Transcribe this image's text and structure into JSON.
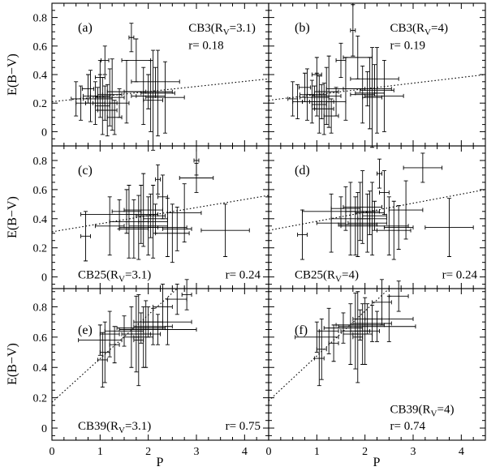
{
  "figure": {
    "x_axis_label": "P",
    "y_axis_label": "E(B−V)",
    "x_ticks": [
      0,
      1,
      2,
      3,
      4
    ],
    "xlim": [
      0,
      4.5
    ]
  },
  "chart_data": [
    {
      "id": "a",
      "type": "scatter",
      "label": "(a)",
      "title_main": "CB3(R",
      "title_sub": "V",
      "title_tail": "=3.1)",
      "r_text": "r= 0.18",
      "xlabel": "P",
      "ylabel": "E(B−V)",
      "xlim": [
        0,
        4.5
      ],
      "ylim": [
        -0.1,
        0.9
      ],
      "y_ticks": [
        0,
        0.2,
        0.4,
        0.6,
        0.8
      ],
      "fit": {
        "x0": 0,
        "y0": 0.21,
        "x1": 4.5,
        "y1": 0.37
      },
      "points": [
        {
          "x": 0.5,
          "y": 0.23,
          "xerr": 0.1,
          "yerr": 0.12
        },
        {
          "x": 0.6,
          "y": 0.2,
          "xerr": 0.1,
          "yerr": 0.12
        },
        {
          "x": 0.75,
          "y": 0.3,
          "xerr": 0.12,
          "yerr": 0.1
        },
        {
          "x": 0.8,
          "y": 0.25,
          "xerr": 0.15,
          "yerr": 0.18
        },
        {
          "x": 0.9,
          "y": 0.2,
          "xerr": 0.2,
          "yerr": 0.15
        },
        {
          "x": 0.95,
          "y": 0.23,
          "xerr": 0.3,
          "yerr": 0.08
        },
        {
          "x": 1.0,
          "y": 0.25,
          "xerr": 0.2,
          "yerr": 0.15
        },
        {
          "x": 1.0,
          "y": 0.38,
          "xerr": 0.1,
          "yerr": 0.12
        },
        {
          "x": 1.05,
          "y": 0.18,
          "xerr": 0.15,
          "yerr": 0.2
        },
        {
          "x": 1.1,
          "y": 0.2,
          "xerr": 0.25,
          "yerr": 0.12
        },
        {
          "x": 1.1,
          "y": 0.5,
          "xerr": 0.08,
          "yerr": 0.1
        },
        {
          "x": 1.15,
          "y": 0.15,
          "xerr": 0.2,
          "yerr": 0.18
        },
        {
          "x": 1.2,
          "y": 0.24,
          "xerr": 0.3,
          "yerr": 0.2
        },
        {
          "x": 1.25,
          "y": 0.26,
          "xerr": 0.2,
          "yerr": 0.25
        },
        {
          "x": 1.3,
          "y": 0.1,
          "xerr": 0.15,
          "yerr": 0.12
        },
        {
          "x": 1.4,
          "y": 0.2,
          "xerr": 0.2,
          "yerr": 0.1
        },
        {
          "x": 1.55,
          "y": 0.28,
          "xerr": 0.4,
          "yerr": 0.22
        },
        {
          "x": 1.65,
          "y": 0.66,
          "xerr": 0.05,
          "yerr": 0.1
        },
        {
          "x": 1.75,
          "y": 0.5,
          "xerr": 0.3,
          "yerr": 0.15
        },
        {
          "x": 1.9,
          "y": 0.25,
          "xerr": 0.25,
          "yerr": 0.2
        },
        {
          "x": 2.0,
          "y": 0.28,
          "xerr": 0.5,
          "yerr": 0.12
        },
        {
          "x": 2.05,
          "y": 0.25,
          "xerr": 0.3,
          "yerr": 0.25
        },
        {
          "x": 2.1,
          "y": 0.22,
          "xerr": 0.2,
          "yerr": 0.35
        },
        {
          "x": 2.15,
          "y": 0.35,
          "xerr": 0.5,
          "yerr": 0.1
        },
        {
          "x": 2.2,
          "y": 0.27,
          "xerr": 0.35,
          "yerr": 0.3
        },
        {
          "x": 2.35,
          "y": 0.24,
          "xerr": 0.4,
          "yerr": 0.25
        }
      ]
    },
    {
      "id": "b",
      "type": "scatter",
      "label": "(b)",
      "title_main": "CB3(R",
      "title_sub": "V",
      "title_tail": "=4)",
      "r_text": "r= 0.19",
      "xlabel": "P",
      "ylabel": "E(B−V)",
      "xlim": [
        0,
        4.5
      ],
      "ylim": [
        -0.1,
        0.9
      ],
      "y_ticks": [
        0,
        0.2,
        0.4,
        0.6,
        0.8
      ],
      "fit": {
        "x0": 0,
        "y0": 0.22,
        "x1": 4.5,
        "y1": 0.4
      },
      "points": [
        {
          "x": 0.5,
          "y": 0.23,
          "xerr": 0.1,
          "yerr": 0.12
        },
        {
          "x": 0.6,
          "y": 0.21,
          "xerr": 0.1,
          "yerr": 0.12
        },
        {
          "x": 0.75,
          "y": 0.31,
          "xerr": 0.12,
          "yerr": 0.1
        },
        {
          "x": 0.8,
          "y": 0.26,
          "xerr": 0.15,
          "yerr": 0.18
        },
        {
          "x": 0.9,
          "y": 0.21,
          "xerr": 0.2,
          "yerr": 0.15
        },
        {
          "x": 0.95,
          "y": 0.24,
          "xerr": 0.3,
          "yerr": 0.08
        },
        {
          "x": 1.0,
          "y": 0.26,
          "xerr": 0.2,
          "yerr": 0.15
        },
        {
          "x": 1.0,
          "y": 0.4,
          "xerr": 0.1,
          "yerr": 0.12
        },
        {
          "x": 1.05,
          "y": 0.19,
          "xerr": 0.15,
          "yerr": 0.2
        },
        {
          "x": 1.1,
          "y": 0.21,
          "xerr": 0.25,
          "yerr": 0.12
        },
        {
          "x": 1.15,
          "y": 0.16,
          "xerr": 0.2,
          "yerr": 0.18
        },
        {
          "x": 1.2,
          "y": 0.25,
          "xerr": 0.3,
          "yerr": 0.2
        },
        {
          "x": 1.25,
          "y": 0.28,
          "xerr": 0.2,
          "yerr": 0.25
        },
        {
          "x": 1.3,
          "y": 0.11,
          "xerr": 0.15,
          "yerr": 0.12
        },
        {
          "x": 1.4,
          "y": 0.21,
          "xerr": 0.2,
          "yerr": 0.1
        },
        {
          "x": 1.5,
          "y": 0.5,
          "xerr": 0.1,
          "yerr": 0.12
        },
        {
          "x": 1.6,
          "y": 0.3,
          "xerr": 0.4,
          "yerr": 0.22
        },
        {
          "x": 1.75,
          "y": 0.71,
          "xerr": 0.05,
          "yerr": 0.18
        },
        {
          "x": 1.85,
          "y": 0.52,
          "xerr": 0.3,
          "yerr": 0.15
        },
        {
          "x": 1.95,
          "y": 0.26,
          "xerr": 0.25,
          "yerr": 0.2
        },
        {
          "x": 2.05,
          "y": 0.3,
          "xerr": 0.5,
          "yerr": 0.12
        },
        {
          "x": 2.1,
          "y": 0.27,
          "xerr": 0.3,
          "yerr": 0.25
        },
        {
          "x": 2.15,
          "y": 0.24,
          "xerr": 0.2,
          "yerr": 0.35
        },
        {
          "x": 2.2,
          "y": 0.37,
          "xerr": 0.5,
          "yerr": 0.1
        },
        {
          "x": 2.25,
          "y": 0.29,
          "xerr": 0.35,
          "yerr": 0.3
        },
        {
          "x": 2.4,
          "y": 0.25,
          "xerr": 0.4,
          "yerr": 0.25
        }
      ]
    },
    {
      "id": "c",
      "type": "scatter",
      "label": "(c)",
      "title_main": "CB25(R",
      "title_sub": "V",
      "title_tail": "=3.1)",
      "r_text": "r= 0.24",
      "xlabel": "P",
      "ylabel": "E(B−V)",
      "xlim": [
        0,
        4.5
      ],
      "ylim": [
        -0.08,
        0.9
      ],
      "y_ticks": [
        0,
        0.2,
        0.4,
        0.6,
        0.8
      ],
      "fit": {
        "x0": 0,
        "y0": 0.31,
        "x1": 4.5,
        "y1": 0.56
      },
      "points": [
        {
          "x": 0.7,
          "y": 0.28,
          "xerr": 0.1,
          "yerr": 0.17
        },
        {
          "x": 1.2,
          "y": 0.35,
          "xerr": 0.3,
          "yerr": 0.2
        },
        {
          "x": 1.4,
          "y": 0.43,
          "xerr": 0.8,
          "yerr": 0.1
        },
        {
          "x": 1.55,
          "y": 0.45,
          "xerr": 0.3,
          "yerr": 0.15
        },
        {
          "x": 1.6,
          "y": 0.38,
          "xerr": 0.4,
          "yerr": 0.25
        },
        {
          "x": 1.7,
          "y": 0.33,
          "xerr": 0.3,
          "yerr": 0.2
        },
        {
          "x": 1.8,
          "y": 0.34,
          "xerr": 0.4,
          "yerr": 0.22
        },
        {
          "x": 1.85,
          "y": 0.43,
          "xerr": 0.3,
          "yerr": 0.2
        },
        {
          "x": 1.9,
          "y": 0.46,
          "xerr": 0.4,
          "yerr": 0.25
        },
        {
          "x": 2.0,
          "y": 0.35,
          "xerr": 0.4,
          "yerr": 0.2
        },
        {
          "x": 2.05,
          "y": 0.42,
          "xerr": 0.3,
          "yerr": 0.15
        },
        {
          "x": 2.1,
          "y": 0.38,
          "xerr": 0.3,
          "yerr": 0.25
        },
        {
          "x": 2.15,
          "y": 0.4,
          "xerr": 0.25,
          "yerr": 0.1
        },
        {
          "x": 2.2,
          "y": 0.67,
          "xerr": 0.05,
          "yerr": 0.1
        },
        {
          "x": 2.3,
          "y": 0.55,
          "xerr": 0.1,
          "yerr": 0.15
        },
        {
          "x": 2.4,
          "y": 0.34,
          "xerr": 0.4,
          "yerr": 0.2
        },
        {
          "x": 2.5,
          "y": 0.3,
          "xerr": 0.35,
          "yerr": 0.2
        },
        {
          "x": 2.6,
          "y": 0.33,
          "xerr": 0.3,
          "yerr": 0.15
        },
        {
          "x": 2.75,
          "y": 0.44,
          "xerr": 0.35,
          "yerr": 0.2
        },
        {
          "x": 3.0,
          "y": 0.68,
          "xerr": 0.35,
          "yerr": 0.1
        },
        {
          "x": 3.0,
          "y": 0.8,
          "xerr": 0.05,
          "yerr": 0.1
        },
        {
          "x": 3.6,
          "y": 0.32,
          "xerr": 0.5,
          "yerr": 0.18
        }
      ]
    },
    {
      "id": "d",
      "type": "scatter",
      "label": "(d)",
      "title_main": "CB25(R",
      "title_sub": "V",
      "title_tail": "=4)",
      "r_text": "r= 0.24",
      "xlabel": "P",
      "ylabel": "E(B−V)",
      "xlim": [
        0,
        4.5
      ],
      "ylim": [
        -0.08,
        0.9
      ],
      "y_ticks": [
        0,
        0.2,
        0.4,
        0.6,
        0.8
      ],
      "fit": {
        "x0": 0,
        "y0": 0.32,
        "x1": 4.5,
        "y1": 0.6
      },
      "points": [
        {
          "x": 0.7,
          "y": 0.29,
          "xerr": 0.1,
          "yerr": 0.17
        },
        {
          "x": 1.3,
          "y": 0.37,
          "xerr": 0.3,
          "yerr": 0.2
        },
        {
          "x": 1.5,
          "y": 0.45,
          "xerr": 0.8,
          "yerr": 0.1
        },
        {
          "x": 1.6,
          "y": 0.47,
          "xerr": 0.3,
          "yerr": 0.15
        },
        {
          "x": 1.7,
          "y": 0.4,
          "xerr": 0.4,
          "yerr": 0.25
        },
        {
          "x": 1.8,
          "y": 0.35,
          "xerr": 0.3,
          "yerr": 0.2
        },
        {
          "x": 1.85,
          "y": 0.36,
          "xerr": 0.4,
          "yerr": 0.22
        },
        {
          "x": 1.9,
          "y": 0.45,
          "xerr": 0.3,
          "yerr": 0.2
        },
        {
          "x": 1.95,
          "y": 0.48,
          "xerr": 0.4,
          "yerr": 0.25
        },
        {
          "x": 2.05,
          "y": 0.37,
          "xerr": 0.4,
          "yerr": 0.2
        },
        {
          "x": 2.1,
          "y": 0.44,
          "xerr": 0.3,
          "yerr": 0.15
        },
        {
          "x": 2.15,
          "y": 0.4,
          "xerr": 0.3,
          "yerr": 0.25
        },
        {
          "x": 2.2,
          "y": 0.42,
          "xerr": 0.25,
          "yerr": 0.1
        },
        {
          "x": 2.3,
          "y": 0.71,
          "xerr": 0.05,
          "yerr": 0.1
        },
        {
          "x": 2.4,
          "y": 0.58,
          "xerr": 0.1,
          "yerr": 0.15
        },
        {
          "x": 2.5,
          "y": 0.35,
          "xerr": 0.4,
          "yerr": 0.2
        },
        {
          "x": 2.6,
          "y": 0.32,
          "xerr": 0.35,
          "yerr": 0.2
        },
        {
          "x": 2.7,
          "y": 0.34,
          "xerr": 0.3,
          "yerr": 0.15
        },
        {
          "x": 2.85,
          "y": 0.46,
          "xerr": 0.35,
          "yerr": 0.2
        },
        {
          "x": 3.2,
          "y": 0.75,
          "xerr": 0.4,
          "yerr": 0.1
        },
        {
          "x": 3.75,
          "y": 0.34,
          "xerr": 0.5,
          "yerr": 0.2
        }
      ]
    },
    {
      "id": "e",
      "type": "scatter",
      "label": "(e)",
      "title_main": "CB39(R",
      "title_sub": "V",
      "title_tail": "=3.1)",
      "r_text": "r= 0.75",
      "xlabel": "P",
      "ylabel": "E(B−V)",
      "xlim": [
        0,
        4.5
      ],
      "ylim": [
        -0.08,
        0.92
      ],
      "y_ticks": [
        0,
        0.2,
        0.4,
        0.6,
        0.8
      ],
      "fit": {
        "x0": 0,
        "y0": 0.17,
        "x1": 2.6,
        "y1": 0.92
      },
      "points": [
        {
          "x": 1.0,
          "y": 0.58,
          "xerr": 0.45,
          "yerr": 0.1
        },
        {
          "x": 1.05,
          "y": 0.45,
          "xerr": 0.1,
          "yerr": 0.18
        },
        {
          "x": 1.1,
          "y": 0.5,
          "xerr": 0.1,
          "yerr": 0.2
        },
        {
          "x": 1.2,
          "y": 0.62,
          "xerr": 0.2,
          "yerr": 0.15
        },
        {
          "x": 1.3,
          "y": 0.55,
          "xerr": 0.1,
          "yerr": 0.12
        },
        {
          "x": 1.5,
          "y": 0.64,
          "xerr": 0.4,
          "yerr": 0.1
        },
        {
          "x": 1.65,
          "y": 0.6,
          "xerr": 0.15,
          "yerr": 0.2
        },
        {
          "x": 1.75,
          "y": 0.62,
          "xerr": 0.3,
          "yerr": 0.25
        },
        {
          "x": 1.8,
          "y": 0.58,
          "xerr": 0.1,
          "yerr": 0.3
        },
        {
          "x": 1.85,
          "y": 0.66,
          "xerr": 0.5,
          "yerr": 0.1
        },
        {
          "x": 1.9,
          "y": 0.6,
          "xerr": 0.2,
          "yerr": 0.2
        },
        {
          "x": 1.95,
          "y": 0.62,
          "xerr": 0.3,
          "yerr": 0.22
        },
        {
          "x": 2.0,
          "y": 0.7,
          "xerr": 0.3,
          "yerr": 0.1
        },
        {
          "x": 2.1,
          "y": 0.67,
          "xerr": 0.4,
          "yerr": 0.12
        },
        {
          "x": 2.2,
          "y": 0.65,
          "xerr": 0.8,
          "yerr": 0.1
        },
        {
          "x": 2.3,
          "y": 0.8,
          "xerr": 0.2,
          "yerr": 0.15
        },
        {
          "x": 2.4,
          "y": 0.7,
          "xerr": 0.5,
          "yerr": 0.15
        },
        {
          "x": 2.6,
          "y": 0.85,
          "xerr": 0.2,
          "yerr": 0.1
        },
        {
          "x": 2.8,
          "y": 0.88,
          "xerr": 0.1,
          "yerr": 0.1
        }
      ]
    },
    {
      "id": "f",
      "type": "scatter",
      "label": "(f)",
      "title_main": "CB39(R",
      "title_sub": "V",
      "title_tail": "=4)",
      "r_text": "r= 0.74",
      "xlabel": "P",
      "ylabel": "E(B−V)",
      "xlim": [
        0,
        4.5
      ],
      "ylim": [
        -0.08,
        0.92
      ],
      "y_ticks": [
        0,
        0.2,
        0.4,
        0.6,
        0.8
      ],
      "fit": {
        "x0": 0,
        "y0": 0.18,
        "x1": 2.5,
        "y1": 0.92
      },
      "points": [
        {
          "x": 1.0,
          "y": 0.6,
          "xerr": 0.45,
          "yerr": 0.1
        },
        {
          "x": 1.05,
          "y": 0.46,
          "xerr": 0.1,
          "yerr": 0.18
        },
        {
          "x": 1.1,
          "y": 0.52,
          "xerr": 0.1,
          "yerr": 0.2
        },
        {
          "x": 1.25,
          "y": 0.64,
          "xerr": 0.2,
          "yerr": 0.15
        },
        {
          "x": 1.35,
          "y": 0.56,
          "xerr": 0.1,
          "yerr": 0.12
        },
        {
          "x": 1.55,
          "y": 0.66,
          "xerr": 0.4,
          "yerr": 0.1
        },
        {
          "x": 1.7,
          "y": 0.62,
          "xerr": 0.15,
          "yerr": 0.2
        },
        {
          "x": 1.8,
          "y": 0.64,
          "xerr": 0.3,
          "yerr": 0.25
        },
        {
          "x": 1.85,
          "y": 0.6,
          "xerr": 0.1,
          "yerr": 0.3
        },
        {
          "x": 1.9,
          "y": 0.68,
          "xerr": 0.5,
          "yerr": 0.1
        },
        {
          "x": 1.95,
          "y": 0.62,
          "xerr": 0.2,
          "yerr": 0.2
        },
        {
          "x": 2.0,
          "y": 0.64,
          "xerr": 0.3,
          "yerr": 0.22
        },
        {
          "x": 2.05,
          "y": 0.72,
          "xerr": 0.3,
          "yerr": 0.1
        },
        {
          "x": 2.15,
          "y": 0.69,
          "xerr": 0.4,
          "yerr": 0.12
        },
        {
          "x": 2.25,
          "y": 0.67,
          "xerr": 0.8,
          "yerr": 0.1
        },
        {
          "x": 2.35,
          "y": 0.83,
          "xerr": 0.2,
          "yerr": 0.15
        },
        {
          "x": 2.5,
          "y": 0.72,
          "xerr": 0.5,
          "yerr": 0.15
        },
        {
          "x": 2.7,
          "y": 0.87,
          "xerr": 0.2,
          "yerr": 0.1
        }
      ]
    }
  ]
}
